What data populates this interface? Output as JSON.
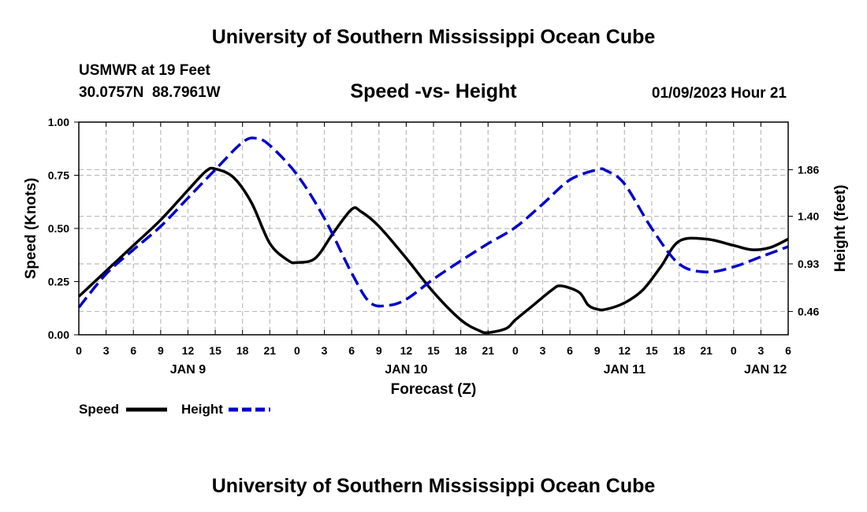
{
  "header": {
    "title": "University of Southern Mississippi Ocean Cube",
    "station": "USMWR at 19 Feet",
    "location": "30.0757N  88.7961W",
    "subtitle": "Speed -vs- Height",
    "datetime": "01/09/2023 Hour 21"
  },
  "footer": {
    "title": "University of Southern Mississippi Ocean Cube"
  },
  "legend": {
    "speed_label": "Speed",
    "height_label": "Height",
    "speed_color": "#000000",
    "height_color": "#0000cc"
  },
  "chart_data": {
    "type": "line",
    "title": "Speed -vs- Height",
    "xlabel": "Forecast (Z)",
    "ylabel": "Speed (Knots)",
    "y2label": "Height (feet)",
    "x_unit": "hours since JAN 9 00Z",
    "xlim": [
      0,
      78
    ],
    "ylim": [
      0,
      1.0
    ],
    "y2lim": [
      0.23,
      2.33
    ],
    "grid": true,
    "x_ticks": [
      {
        "x": 0,
        "label": "0"
      },
      {
        "x": 3,
        "label": "3"
      },
      {
        "x": 6,
        "label": "6"
      },
      {
        "x": 9,
        "label": "9"
      },
      {
        "x": 12,
        "label": "12"
      },
      {
        "x": 15,
        "label": "15"
      },
      {
        "x": 18,
        "label": "18"
      },
      {
        "x": 21,
        "label": "21"
      },
      {
        "x": 24,
        "label": "0"
      },
      {
        "x": 27,
        "label": "3"
      },
      {
        "x": 30,
        "label": "6"
      },
      {
        "x": 33,
        "label": "9"
      },
      {
        "x": 36,
        "label": "12"
      },
      {
        "x": 39,
        "label": "15"
      },
      {
        "x": 42,
        "label": "18"
      },
      {
        "x": 45,
        "label": "21"
      },
      {
        "x": 48,
        "label": "0"
      },
      {
        "x": 51,
        "label": "3"
      },
      {
        "x": 54,
        "label": "6"
      },
      {
        "x": 57,
        "label": "9"
      },
      {
        "x": 60,
        "label": "12"
      },
      {
        "x": 63,
        "label": "15"
      },
      {
        "x": 66,
        "label": "18"
      },
      {
        "x": 69,
        "label": "21"
      },
      {
        "x": 72,
        "label": "0"
      },
      {
        "x": 75,
        "label": "3"
      },
      {
        "x": 78,
        "label": "6"
      }
    ],
    "day_labels": [
      {
        "x": 12,
        "label": "JAN 9"
      },
      {
        "x": 36,
        "label": "JAN 10"
      },
      {
        "x": 60,
        "label": "JAN 11"
      },
      {
        "x": 75.5,
        "label": "JAN 12"
      }
    ],
    "y_ticks": [
      {
        "y": 0,
        "label": "0.00"
      },
      {
        "y": 0.25,
        "label": "0.25"
      },
      {
        "y": 0.5,
        "label": "0.50"
      },
      {
        "y": 0.75,
        "label": "0.75"
      },
      {
        "y": 1.0,
        "label": "1.00"
      }
    ],
    "y2_ticks": [
      {
        "y": 0.46,
        "label": "0.46"
      },
      {
        "y": 0.93,
        "label": "0.93"
      },
      {
        "y": 1.4,
        "label": "1.40"
      },
      {
        "y": 1.86,
        "label": "1.86"
      }
    ],
    "series": [
      {
        "name": "Speed",
        "axis": "left",
        "color": "#000000",
        "dash": false,
        "x": [
          0,
          3,
          6,
          9,
          12,
          14,
          15,
          17,
          19,
          21,
          23,
          24,
          26,
          28,
          30,
          31,
          33,
          36,
          39,
          42,
          44,
          45,
          47,
          48,
          50,
          52,
          53,
          55,
          56,
          57,
          58,
          60,
          62,
          64,
          66,
          69,
          72,
          74,
          76,
          78
        ],
        "values": [
          0.18,
          0.3,
          0.42,
          0.54,
          0.68,
          0.77,
          0.78,
          0.74,
          0.62,
          0.43,
          0.35,
          0.34,
          0.36,
          0.48,
          0.59,
          0.58,
          0.51,
          0.36,
          0.2,
          0.07,
          0.02,
          0.01,
          0.03,
          0.07,
          0.14,
          0.21,
          0.23,
          0.2,
          0.14,
          0.12,
          0.12,
          0.15,
          0.21,
          0.32,
          0.44,
          0.45,
          0.42,
          0.4,
          0.41,
          0.45
        ]
      },
      {
        "name": "Height",
        "axis": "right",
        "color": "#0000cc",
        "dash": true,
        "x": [
          0,
          3,
          6,
          9,
          12,
          15,
          18,
          19.5,
          21,
          24,
          27,
          30,
          32,
          34,
          36,
          39,
          42,
          45,
          48,
          51,
          54,
          57,
          58,
          60,
          63,
          66,
          69,
          72,
          75,
          78
        ],
        "values": [
          0.5,
          0.83,
          1.07,
          1.3,
          1.58,
          1.86,
          2.13,
          2.17,
          2.1,
          1.81,
          1.38,
          0.84,
          0.55,
          0.52,
          0.58,
          0.78,
          0.96,
          1.13,
          1.29,
          1.52,
          1.76,
          1.86,
          1.85,
          1.72,
          1.28,
          0.93,
          0.85,
          0.9,
          1.0,
          1.1
        ]
      }
    ]
  }
}
